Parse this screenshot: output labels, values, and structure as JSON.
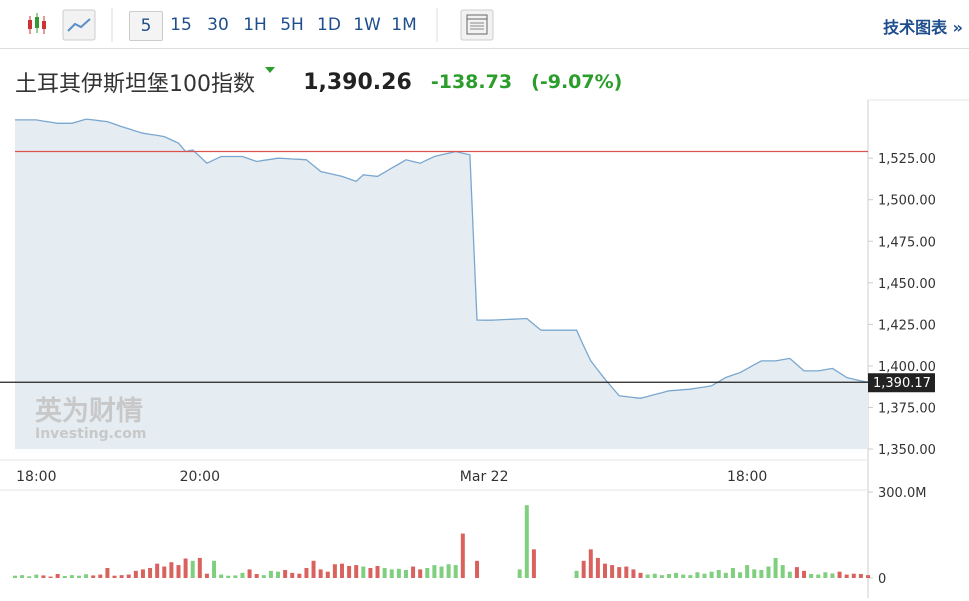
{
  "toolbar": {
    "intervals": [
      "5",
      "15",
      "30",
      "1H",
      "5H",
      "1D",
      "1W",
      "1M"
    ],
    "link": "技术图表 »"
  },
  "quote": {
    "title": "土耳其伊斯坦堡100指数",
    "price": "1,390.26",
    "change": "-138.73",
    "change_percent": "(-9.07%)"
  },
  "watermark": {
    "cn": "英为财情",
    "en": "Investing.com"
  },
  "chart_data": [
    {
      "type": "line",
      "color": "#7aa7d0",
      "fill": "#e5edf2",
      "categories": [
        null,
        null,
        null,
        "18:00",
        null,
        null,
        null,
        null,
        null,
        null,
        null,
        null,
        null,
        null,
        null,
        null,
        null,
        null,
        null,
        null,
        null,
        null,
        null,
        null,
        null,
        null,
        "20:00",
        null,
        null,
        null,
        null,
        null,
        null,
        null,
        null,
        null,
        null,
        null,
        null,
        null,
        null,
        null,
        null,
        null,
        null,
        null,
        null,
        null,
        null,
        null,
        null,
        null,
        null,
        null,
        null,
        null,
        null,
        null,
        null,
        null,
        null,
        null,
        null,
        null,
        null,
        null,
        "Mar 22",
        null,
        null,
        null,
        null,
        null,
        null,
        null,
        null,
        null,
        null,
        null,
        null,
        null,
        null,
        null,
        null,
        null,
        null,
        null,
        null,
        null,
        null,
        null,
        null,
        null,
        null,
        null,
        null,
        null,
        null,
        null,
        null,
        null,
        null,
        null,
        null,
        "18:00",
        null,
        null,
        null,
        null,
        null,
        null,
        null,
        null,
        null,
        null,
        null,
        null,
        null,
        null,
        null,
        null,
        null
      ],
      "values": [
        1548,
        1548,
        1548,
        1548,
        1547.3,
        1546.7,
        1546,
        1546,
        1546,
        1547.2,
        1548.5,
        1548,
        1547.5,
        1547,
        1545.5,
        1544,
        1542.7,
        1541.3,
        1540,
        1539.3,
        1538.7,
        1538,
        1536,
        1534,
        1529,
        1530,
        1526,
        1522,
        1524,
        1526,
        1526,
        1526,
        1526,
        1524.5,
        1523,
        1523.7,
        1524.3,
        1525,
        1524.8,
        1524.5,
        1524.3,
        1524,
        1520.5,
        1517,
        1516,
        1515,
        1514,
        1512.5,
        1511,
        1515,
        1514.5,
        1514,
        1516.5,
        1519,
        1521.5,
        1524,
        1523,
        1522,
        1524,
        1526,
        1527,
        1528,
        1529,
        1528,
        1527,
        1427.6,
        1427.5,
        1427.5,
        1427.7,
        1427.9,
        1428.1,
        1428.3,
        1428.5,
        1425,
        1421.5,
        1421.5,
        1421.5,
        1421.5,
        1421.5,
        1421.5,
        1412,
        1403,
        1397.5,
        1392,
        1387,
        1382,
        1381.5,
        1381,
        1380.5,
        1381.6,
        1382.8,
        1383.9,
        1385,
        1385.3,
        1385.7,
        1386,
        1386.7,
        1387.3,
        1388,
        1390.5,
        1393,
        1394.5,
        1396,
        1398.3,
        1400.7,
        1403,
        1403,
        1403,
        1403.8,
        1404.5,
        1400.8,
        1397,
        1397,
        1397,
        1397.8,
        1398.5,
        1395.8,
        1393,
        1392,
        1391,
        1390.17
      ],
      "ylim": [
        1350,
        1560
      ],
      "yticks": [
        {
          "value": 1350,
          "label": "1,350.00"
        },
        {
          "value": 1375,
          "label": "1,375.00"
        },
        {
          "value": 1400,
          "label": "1,400.00"
        },
        {
          "value": 1425,
          "label": "1,425.00"
        },
        {
          "value": 1450,
          "label": "1,450.00"
        },
        {
          "value": 1475,
          "label": "1,475.00"
        },
        {
          "value": 1500,
          "label": "1,500.00"
        },
        {
          "value": 1525,
          "label": "1,525.00"
        }
      ],
      "reference_line": {
        "value": 1529,
        "color": "#d9534f"
      },
      "last_price": {
        "value": 1390.17,
        "label": "1,390.17",
        "color": "#222"
      },
      "grid": false
    },
    {
      "type": "bar",
      "up_color": "#7fcf7f",
      "down_color": "#d9625f",
      "values": [
        8,
        10,
        6,
        12,
        9,
        5,
        14,
        7,
        10,
        8,
        13,
        9,
        12,
        35,
        8,
        10,
        12,
        25,
        30,
        35,
        50,
        40,
        55,
        45,
        68,
        60,
        70,
        15,
        60,
        12,
        8,
        9,
        18,
        30,
        14,
        10,
        25,
        22,
        28,
        18,
        15,
        35,
        60,
        30,
        22,
        48,
        50,
        42,
        45,
        40,
        35,
        42,
        35,
        30,
        32,
        28,
        40,
        30,
        35,
        45,
        40,
        48,
        45,
        155,
        null,
        60,
        null,
        null,
        null,
        null,
        null,
        30,
        254,
        100,
        null,
        null,
        null,
        null,
        null,
        25,
        60,
        100,
        70,
        50,
        45,
        38,
        40,
        30,
        18,
        12,
        15,
        10,
        14,
        18,
        12,
        10,
        20,
        15,
        22,
        28,
        18,
        35,
        20,
        45,
        30,
        28,
        40,
        70,
        45,
        22,
        38,
        25,
        14,
        12,
        20,
        16,
        22,
        12,
        15,
        14,
        10
      ],
      "ylim": [
        0,
        300
      ],
      "yticks": [
        0,
        {
          "value": 300,
          "label": "300.0M"
        }
      ]
    }
  ]
}
